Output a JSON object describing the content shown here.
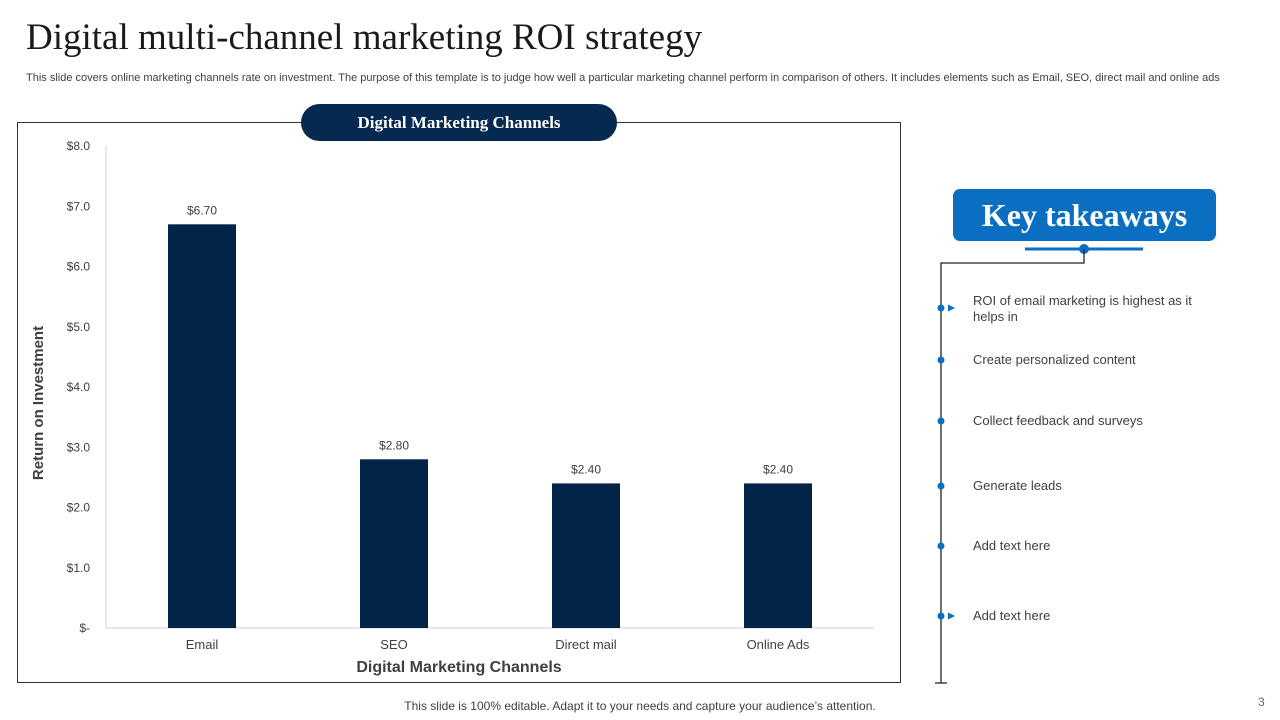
{
  "title": "Digital multi-channel marketing ROI strategy",
  "subtitle": "This slide covers online marketing channels rate on investment. The purpose of this template is to judge how well a particular marketing channel perform in comparison of others. It includes elements such as Email, SEO, direct mail and online ads",
  "chart_header": "Digital Marketing Channels",
  "chart_data": {
    "type": "bar",
    "categories": [
      "Email",
      "SEO",
      "Direct mail",
      "Online Ads"
    ],
    "values": [
      6.7,
      2.8,
      2.4,
      2.4
    ],
    "data_labels": [
      "$6.70",
      "$2.80",
      "$2.40",
      "$2.40"
    ],
    "xlabel": "Digital Marketing Channels",
    "ylabel": "Return on Investment",
    "ylim": [
      0,
      8
    ],
    "yticks": [
      "$-",
      "$1.0",
      "$2.0",
      "$3.0",
      "$4.0",
      "$5.0",
      "$6.0",
      "$7.0",
      "$8.0"
    ],
    "bar_color": "#022448",
    "grid": false
  },
  "takeaways": {
    "title": "Key takeaways",
    "items": [
      "ROI of email marketing is highest as it helps in",
      "Create personalized content",
      "Collect feedback  and surveys",
      "Generate leads",
      "Add text here",
      "Add text here"
    ],
    "accent": "#0a6fc0"
  },
  "footer": "This slide is 100% editable. Adapt it to your needs and capture your audience’s attention.",
  "page_number": "3"
}
